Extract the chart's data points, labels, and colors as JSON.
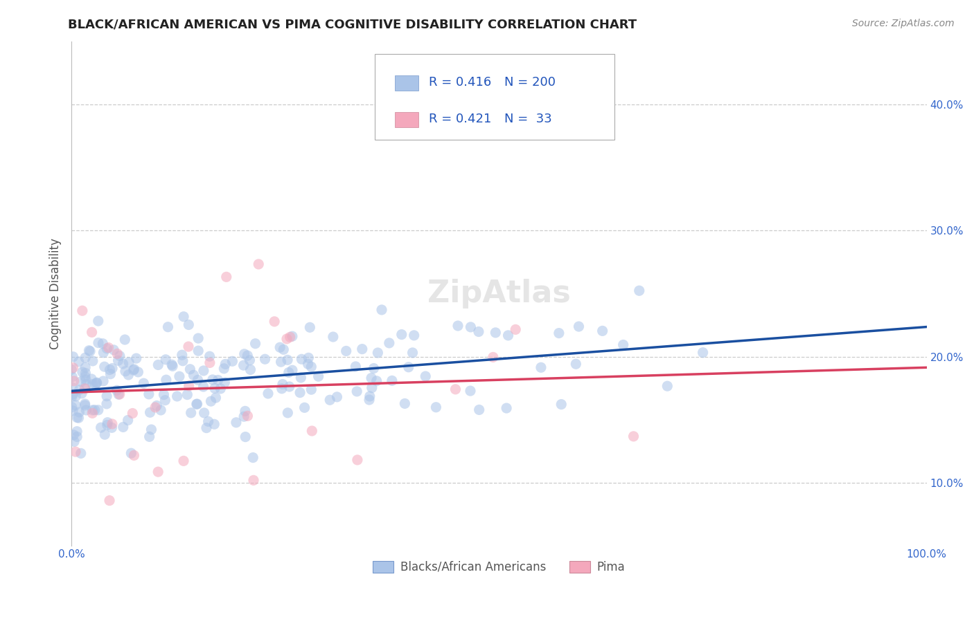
{
  "title": "BLACK/AFRICAN AMERICAN VS PIMA COGNITIVE DISABILITY CORRELATION CHART",
  "source": "Source: ZipAtlas.com",
  "ylabel": "Cognitive Disability",
  "legend_label1": "Blacks/African Americans",
  "legend_label2": "Pima",
  "r1": 0.416,
  "n1": 200,
  "r2": 0.421,
  "n2": 33,
  "color1": "#aac4e8",
  "color2": "#f4a8bc",
  "line_color1": "#1a4fa0",
  "line_color2": "#d84060",
  "legend_text_color": "#2255bb",
  "title_color": "#222222",
  "background_color": "#ffffff",
  "grid_color": "#cccccc",
  "xlim": [
    0,
    1
  ],
  "ylim": [
    0.05,
    0.45
  ],
  "xtick_labels": [
    "0.0%",
    "",
    "",
    "",
    "",
    "100.0%"
  ],
  "xtick_values": [
    0,
    0.2,
    0.4,
    0.6,
    0.8,
    1.0
  ],
  "ytick_labels": [
    "10.0%",
    "20.0%",
    "30.0%",
    "40.0%"
  ],
  "ytick_values": [
    0.1,
    0.2,
    0.3,
    0.4
  ],
  "watermark": "ZipAtlas",
  "seed": 42,
  "dot_size": 120,
  "dot_alpha": 0.55
}
